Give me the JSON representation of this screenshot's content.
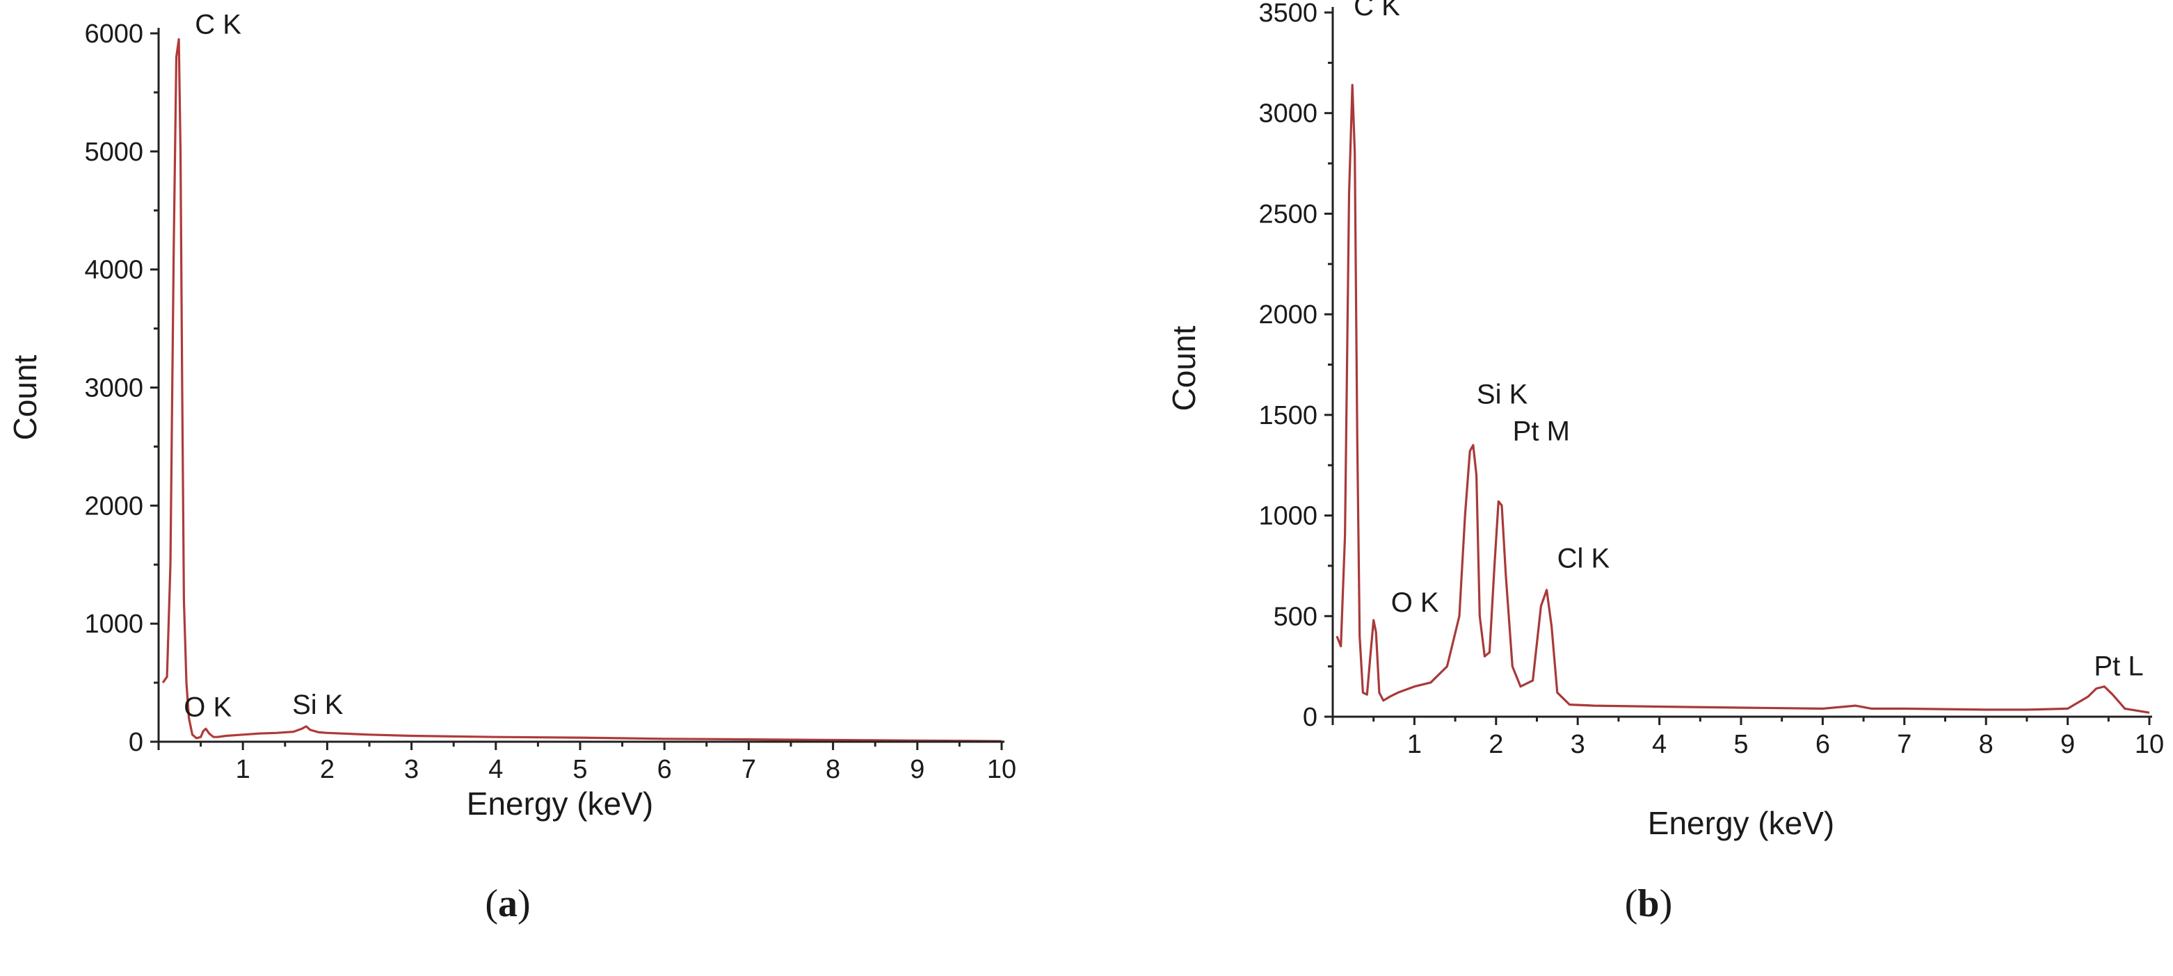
{
  "panels": [
    {
      "label_open": "(",
      "label_letter": "a",
      "label_close": ")"
    },
    {
      "label_open": "(",
      "label_letter": "b",
      "label_close": ")"
    }
  ],
  "chart_data": [
    {
      "type": "line",
      "title": "",
      "xlabel": "Energy (keV)",
      "ylabel": "Count",
      "xlim": [
        0,
        10
      ],
      "ylim": [
        0,
        6000
      ],
      "xticks": [
        1,
        2,
        3,
        4,
        5,
        6,
        7,
        8,
        9,
        10
      ],
      "yticks": [
        0,
        1000,
        2000,
        3000,
        4000,
        5000,
        6000
      ],
      "grid": false,
      "line_color": "#b03a3a",
      "series": [
        {
          "x": [
            0.05,
            0.1,
            0.14,
            0.18,
            0.21,
            0.24,
            0.26,
            0.28,
            0.3,
            0.33,
            0.36,
            0.4,
            0.45,
            0.5,
            0.53,
            0.56,
            0.6,
            0.65,
            0.7,
            0.8,
            1.0,
            1.2,
            1.4,
            1.6,
            1.7,
            1.75,
            1.8,
            1.9,
            2.0,
            2.5,
            3.0,
            4.0,
            5.0,
            6.0,
            7.0,
            8.0,
            9.0,
            10.0
          ],
          "y": [
            500,
            550,
            1500,
            4200,
            5800,
            5950,
            5000,
            3000,
            1200,
            500,
            200,
            60,
            30,
            40,
            90,
            110,
            70,
            40,
            40,
            50,
            60,
            70,
            75,
            85,
            110,
            130,
            100,
            80,
            75,
            60,
            50,
            40,
            35,
            25,
            20,
            15,
            10,
            5
          ]
        }
      ],
      "annotations": [
        {
          "text": "C K",
          "x": 0.25,
          "y": 5950
        },
        {
          "text": "O K",
          "x": 0.53,
          "y": 110
        },
        {
          "text": "Si K",
          "x": 1.75,
          "y": 130
        }
      ]
    },
    {
      "type": "line",
      "title": "",
      "xlabel": "Energy (keV)",
      "ylabel": "Count",
      "xlim": [
        0,
        10
      ],
      "ylim": [
        0,
        3500
      ],
      "xticks": [
        1,
        2,
        3,
        4,
        5,
        6,
        7,
        8,
        9,
        10
      ],
      "yticks": [
        0,
        500,
        1000,
        1500,
        2000,
        2500,
        3000,
        3500
      ],
      "grid": false,
      "line_color": "#a83a3a",
      "series": [
        {
          "x": [
            0.05,
            0.1,
            0.15,
            0.2,
            0.24,
            0.27,
            0.3,
            0.33,
            0.37,
            0.42,
            0.46,
            0.5,
            0.53,
            0.57,
            0.62,
            0.7,
            0.8,
            1.0,
            1.2,
            1.4,
            1.55,
            1.62,
            1.68,
            1.72,
            1.76,
            1.8,
            1.86,
            1.92,
            1.98,
            2.03,
            2.07,
            2.12,
            2.2,
            2.3,
            2.45,
            2.55,
            2.62,
            2.68,
            2.75,
            2.9,
            3.2,
            4.0,
            5.0,
            6.0,
            6.4,
            6.6,
            7.0,
            8.0,
            8.5,
            9.0,
            9.25,
            9.35,
            9.45,
            9.55,
            9.7,
            10.0
          ],
          "y": [
            400,
            350,
            900,
            2600,
            3140,
            2800,
            1400,
            400,
            120,
            110,
            300,
            480,
            420,
            120,
            80,
            100,
            120,
            150,
            170,
            250,
            500,
            1000,
            1320,
            1350,
            1200,
            500,
            300,
            320,
            750,
            1070,
            1050,
            700,
            250,
            150,
            180,
            550,
            630,
            450,
            120,
            60,
            55,
            50,
            45,
            40,
            55,
            40,
            40,
            35,
            35,
            40,
            100,
            140,
            150,
            110,
            40,
            20
          ]
        }
      ],
      "annotations": [
        {
          "text": "C K",
          "x": 0.24,
          "y": 3140
        },
        {
          "text": "O K",
          "x": 0.5,
          "y": 480
        },
        {
          "text": "Si K",
          "x": 1.72,
          "y": 1350
        },
        {
          "text": "Pt M",
          "x": 2.05,
          "y": 1070
        },
        {
          "text": "Cl K",
          "x": 2.62,
          "y": 630
        },
        {
          "text": "Pt L",
          "x": 9.45,
          "y": 150
        }
      ]
    }
  ]
}
